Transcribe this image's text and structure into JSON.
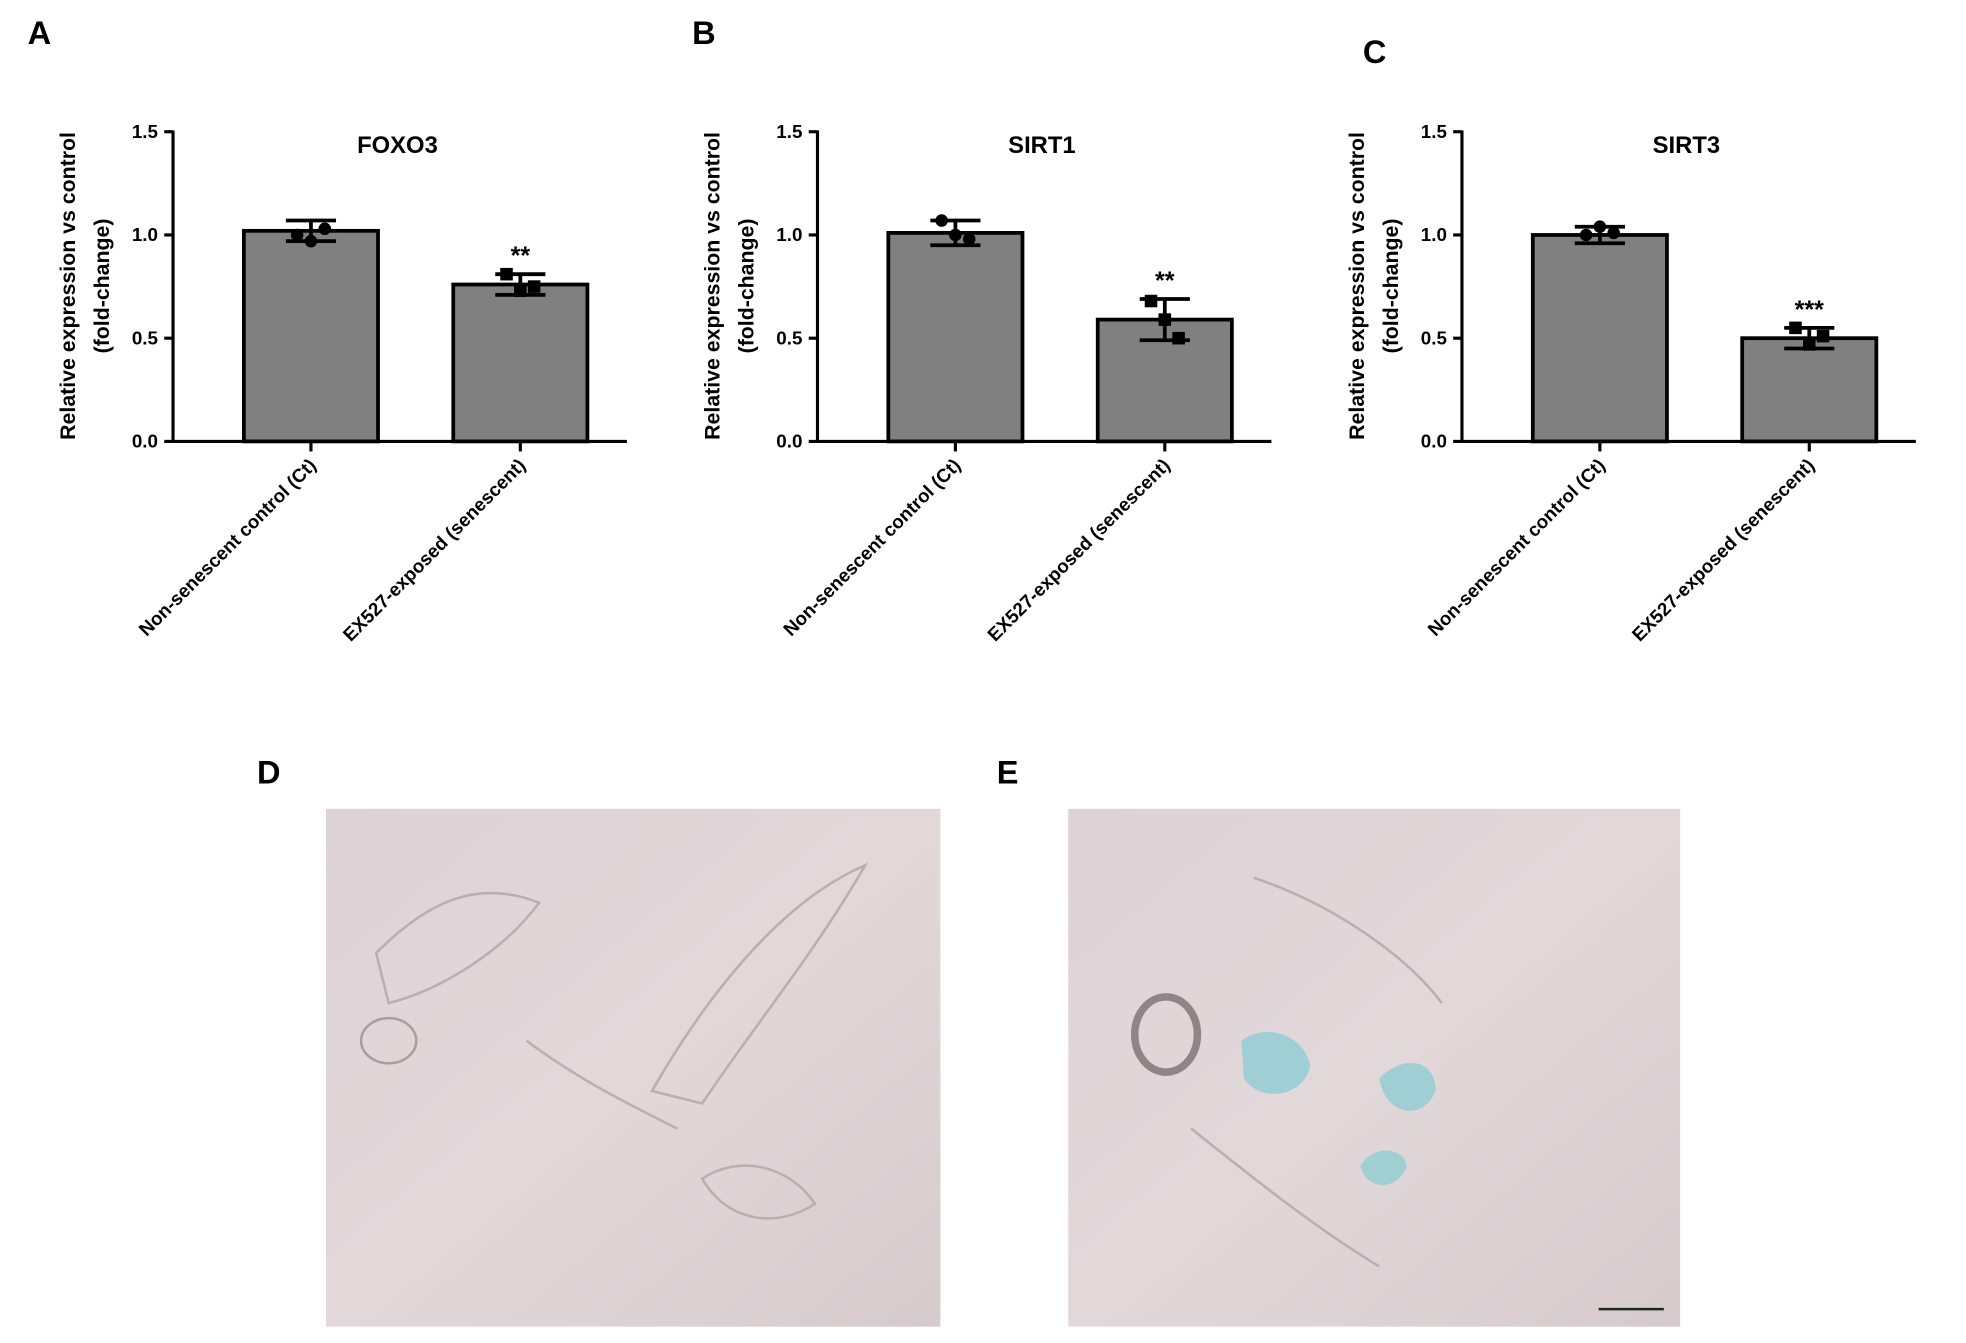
{
  "chart_data": [
    {
      "type": "bar",
      "panel": "A",
      "title": "FOXO3",
      "ylabel": [
        "Relative expression vs control",
        "(fold-change)"
      ],
      "categories": [
        "Non-senescent control (Ct)",
        "EX527-exposed (senescent)"
      ],
      "values": [
        1.02,
        0.76
      ],
      "errors": [
        0.05,
        0.05
      ],
      "points": [
        [
          1.0,
          0.97,
          1.03
        ],
        [
          0.81,
          0.73,
          0.75
        ]
      ],
      "markers": [
        "circle",
        "square"
      ],
      "significance": [
        null,
        "**"
      ],
      "color": "#808080",
      "ylim": [
        0,
        1.5
      ],
      "yticks": [
        {
          "value": 0,
          "label": "0.0"
        },
        0.5,
        {
          "value": 1,
          "label": "1.0"
        },
        1.5
      ]
    },
    {
      "type": "bar",
      "panel": "B",
      "title": "SIRT1",
      "ylabel": [
        "Relative expression vs control",
        "(fold-change)"
      ],
      "categories": [
        "Non-senescent control (Ct)",
        "EX527-exposed (senescent)"
      ],
      "values": [
        1.01,
        0.59
      ],
      "errors": [
        0.06,
        0.1
      ],
      "points": [
        [
          1.07,
          1.0,
          0.98
        ],
        [
          0.68,
          0.59,
          0.5
        ]
      ],
      "markers": [
        "circle",
        "square"
      ],
      "significance": [
        null,
        "**"
      ],
      "color": "#808080",
      "ylim": [
        0,
        1.5
      ],
      "yticks": [
        {
          "value": 0,
          "label": "0.0"
        },
        0.5,
        {
          "value": 1,
          "label": "1.0"
        },
        1.5
      ]
    },
    {
      "type": "bar",
      "panel": "C",
      "title": "SIRT3",
      "ylabel": [
        "Relative expression vs control",
        "(fold-change)"
      ],
      "categories": [
        "Non-senescent control (Ct)",
        "EX527-exposed (senescent)"
      ],
      "values": [
        1.0,
        0.5
      ],
      "errors": [
        0.04,
        0.05
      ],
      "points": [
        [
          1.0,
          1.04,
          1.01
        ],
        [
          0.55,
          0.47,
          0.51
        ]
      ],
      "markers": [
        "circle",
        "square"
      ],
      "significance": [
        null,
        "***"
      ],
      "color": "#808080",
      "ylim": [
        0,
        1.5
      ],
      "yticks": [
        {
          "value": 0,
          "label": "0.0"
        },
        0.5,
        {
          "value": 1,
          "label": "1.0"
        },
        1.5
      ]
    }
  ],
  "images": [
    {
      "label": "D"
    },
    {
      "label": "E"
    }
  ]
}
